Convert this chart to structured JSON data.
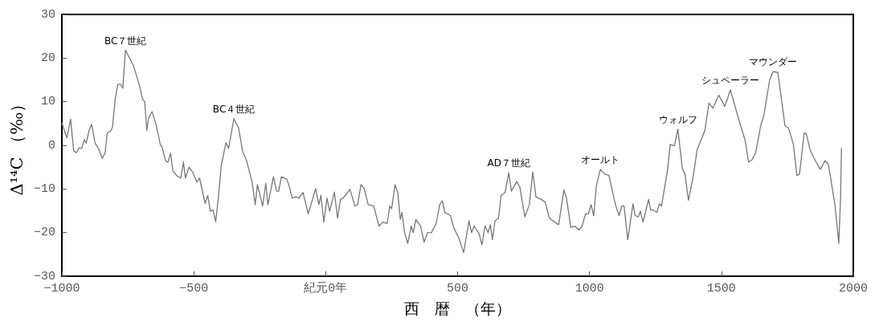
{
  "chart_data": {
    "type": "line",
    "xlabel": "西　暦　（年）",
    "ylabel": "Δ¹⁴C （‰）",
    "x": [
      -1000,
      -981,
      -967,
      -955,
      -945,
      -935,
      -925,
      -915,
      -908,
      -896,
      -887,
      -874,
      -859,
      -847,
      -836,
      -828,
      -816,
      -808,
      -798,
      -788,
      -777,
      -769,
      -759,
      -747,
      -729,
      -716,
      -706,
      -694,
      -686,
      -678,
      -671,
      -658,
      -643,
      -627,
      -620,
      -607,
      -598,
      -588,
      -579,
      -564,
      -549,
      -539,
      -532,
      -518,
      -503,
      -488,
      -478,
      -457,
      -447,
      -437,
      -427,
      -417,
      -407,
      -396,
      -378,
      -368,
      -348,
      -330,
      -315,
      -300,
      -279,
      -267,
      -259,
      -239,
      -227,
      -219,
      -198,
      -186,
      -178,
      -168,
      -147,
      -137,
      -127,
      -112,
      -102,
      -86,
      -66,
      -38,
      -26,
      -18,
      -7,
      5,
      15,
      33,
      45,
      56,
      66,
      92,
      111,
      121,
      134,
      146,
      161,
      182,
      202,
      217,
      233,
      243,
      250,
      263,
      273,
      283,
      289,
      299,
      311,
      324,
      332,
      342,
      360,
      373,
      386,
      401,
      419,
      432,
      442,
      452,
      473,
      485,
      505,
      523,
      543,
      553,
      563,
      582,
      592,
      604,
      616,
      624,
      632,
      642,
      655,
      665,
      680,
      694,
      704,
      724,
      736,
      755,
      772,
      785,
      797,
      817,
      832,
      848,
      868,
      883,
      903,
      913,
      929,
      944,
      960,
      972,
      985,
      996,
      1006,
      1016,
      1026,
      1041,
      1057,
      1074,
      1097,
      1112,
      1123,
      1131,
      1145,
      1165,
      1173,
      1185,
      1193,
      1203,
      1224,
      1232,
      1242,
      1255,
      1265,
      1273,
      1296,
      1306,
      1322,
      1335,
      1352,
      1362,
      1375,
      1393,
      1408,
      1428,
      1438,
      1453,
      1468,
      1490,
      1513,
      1534,
      1564,
      1590,
      1603,
      1615,
      1630,
      1649,
      1661,
      1683,
      1696,
      1714,
      1741,
      1755,
      1773,
      1786,
      1796,
      1814,
      1822,
      1836,
      1855,
      1875,
      1893,
      1906,
      1931,
      1945,
      1952,
      1955
    ],
    "values": [
      5.1,
      1.7,
      6.0,
      -1.3,
      -1.7,
      -0.6,
      -0.7,
      1.3,
      0.5,
      3.6,
      4.8,
      0.5,
      -1.0,
      -3.0,
      -1.7,
      2.9,
      3.2,
      4.2,
      10.6,
      14.0,
      14.0,
      13.1,
      21.8,
      20.4,
      18.3,
      15.8,
      13.7,
      10.6,
      10.0,
      3.4,
      6.3,
      7.7,
      4.8,
      0.2,
      -0.4,
      -3.5,
      -3.9,
      -1.8,
      -5.9,
      -7.0,
      -7.5,
      -3.8,
      -7.5,
      -5.0,
      -6.3,
      -8.4,
      -7.5,
      -13.3,
      -11.5,
      -15.1,
      -14.8,
      -17.5,
      -12.1,
      -4.7,
      0.6,
      -0.7,
      6.1,
      3.9,
      -1.3,
      -3.5,
      -8.4,
      -13.6,
      -9.0,
      -13.9,
      -8.7,
      -13.6,
      -7.2,
      -10.5,
      -10.5,
      -7.2,
      -7.8,
      -9.6,
      -12.1,
      -11.8,
      -12.1,
      -10.8,
      -15.7,
      -9.9,
      -13.6,
      -11.5,
      -17.6,
      -12.1,
      -15.1,
      -10.7,
      -16.7,
      -12.4,
      -12.1,
      -10.1,
      -13.9,
      -13.6,
      -9.0,
      -9.9,
      -13.6,
      -13.9,
      -18.5,
      -17.6,
      -17.9,
      -13.9,
      -14.5,
      -9.0,
      -10.8,
      -17.0,
      -15.4,
      -20.0,
      -22.5,
      -18.5,
      -20.0,
      -17.0,
      -18.5,
      -22.2,
      -20.0,
      -20.0,
      -17.9,
      -13.6,
      -12.7,
      -15.4,
      -16.1,
      -18.8,
      -21.3,
      -24.6,
      -17.3,
      -20.0,
      -18.5,
      -20.3,
      -22.8,
      -18.5,
      -20.0,
      -18.2,
      -21.6,
      -17.3,
      -16.7,
      -11.5,
      -10.8,
      -6.3,
      -10.5,
      -8.3,
      -9.6,
      -16.4,
      -13.6,
      -6.1,
      -11.8,
      -12.4,
      -13.0,
      -16.7,
      -17.6,
      -18.2,
      -10.2,
      -12.1,
      -18.8,
      -18.5,
      -19.4,
      -18.5,
      -15.7,
      -15.7,
      -13.6,
      -16.1,
      -9.3,
      -5.5,
      -6.6,
      -6.9,
      -13.3,
      -16.1,
      -13.9,
      -13.9,
      -21.6,
      -13.4,
      -16.1,
      -16.4,
      -15.1,
      -17.6,
      -12.4,
      -14.8,
      -14.8,
      -15.4,
      -13.4,
      -13.9,
      -5.6,
      0.2,
      -0.1,
      3.7,
      -5.3,
      -6.6,
      -12.6,
      -7.2,
      -1.0,
      2.0,
      3.6,
      9.7,
      8.5,
      11.5,
      8.9,
      12.7,
      6.3,
      1.1,
      -3.8,
      -3.4,
      -1.7,
      4.5,
      6.9,
      15.0,
      16.9,
      16.7,
      4.5,
      3.9,
      0.2,
      -6.9,
      -6.6,
      2.9,
      2.6,
      -1.0,
      -3.4,
      -5.5,
      -3.5,
      -4.4,
      -13.9,
      -22.5,
      -11.5,
      -0.7
    ],
    "color": "#777777",
    "marker": "none",
    "line_style": "solid",
    "grid": false,
    "xlim": [
      -1000,
      2000
    ],
    "xticks": [
      -1000,
      -500,
      {
        "value": 0,
        "label": "紀元0年"
      },
      500,
      1000,
      1500,
      2000
    ],
    "ylim": [
      -30,
      30
    ],
    "yticks": [
      -30,
      -20,
      -10,
      0,
      10,
      20,
      30
    ],
    "annotations": [
      {
        "text": "BC７世紀",
        "x": -759,
        "y": 21.8
      },
      {
        "text": "BC４世紀",
        "x": -348,
        "y": 6.1
      },
      {
        "text": "AD７世紀",
        "x": 694,
        "y": -6.3
      },
      {
        "text": "オールト",
        "x": 1041,
        "y": -5.5
      },
      {
        "text": "ウォルフ",
        "x": 1335,
        "y": 3.7
      },
      {
        "text": "シュペーラー",
        "x": 1534,
        "y": 12.7
      },
      {
        "text": "マウンダー",
        "x": 1696,
        "y": 16.9
      }
    ]
  }
}
